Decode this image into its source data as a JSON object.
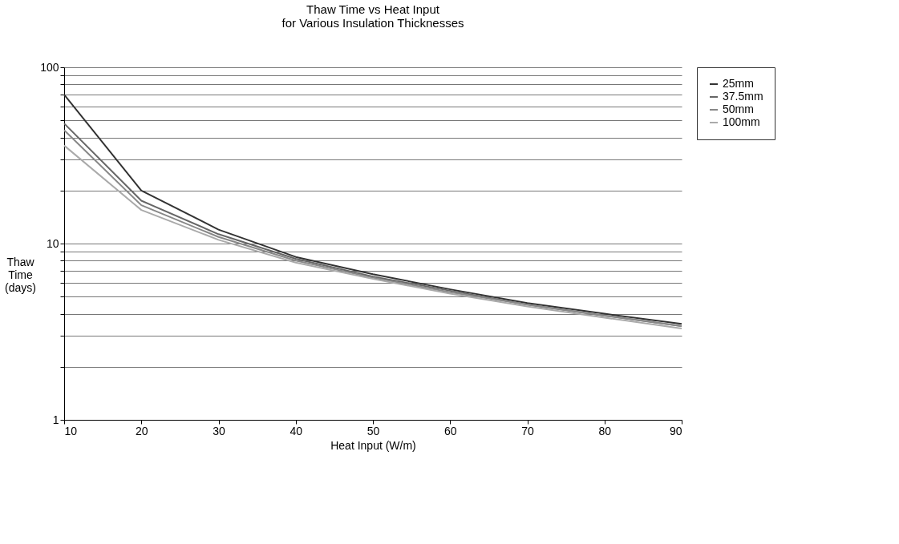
{
  "chart_data": {
    "type": "line",
    "title": [
      "Thaw Time vs Heat Input",
      "for Various Insulation Thicknesses"
    ],
    "xlabel": "Heat Input (W/m)",
    "ylabel": [
      "Thaw",
      "Time",
      "(days)"
    ],
    "x": [
      10,
      20,
      30,
      40,
      50,
      60,
      70,
      80,
      90
    ],
    "series": [
      {
        "name": "25mm",
        "color": "#333333",
        "values": [
          70,
          20,
          12,
          8.4,
          6.7,
          5.5,
          4.6,
          4.0,
          3.5
        ]
      },
      {
        "name": "37.5mm",
        "color": "#666666",
        "values": [
          48,
          17.5,
          11.3,
          8.2,
          6.5,
          5.4,
          4.5,
          3.9,
          3.4
        ]
      },
      {
        "name": "50mm",
        "color": "#888888",
        "values": [
          44,
          16.5,
          10.9,
          8.0,
          6.4,
          5.3,
          4.5,
          3.9,
          3.4
        ]
      },
      {
        "name": "100mm",
        "color": "#aaaaaa",
        "values": [
          36,
          15.5,
          10.5,
          7.8,
          6.3,
          5.2,
          4.4,
          3.8,
          3.3
        ]
      }
    ],
    "xlim": [
      10,
      90
    ],
    "xticks": [
      10,
      20,
      30,
      40,
      50,
      60,
      70,
      80,
      90
    ],
    "ylim": [
      1,
      100
    ],
    "yticks": [
      1,
      {
        "value": 2,
        "label": null
      },
      {
        "value": 3,
        "label": null
      },
      {
        "value": 4,
        "label": null
      },
      {
        "value": 5,
        "label": null
      },
      {
        "value": 6,
        "label": null
      },
      {
        "value": 7,
        "label": null
      },
      {
        "value": 8,
        "label": null
      },
      {
        "value": 9,
        "label": null
      },
      10,
      {
        "value": 20,
        "label": null
      },
      {
        "value": 30,
        "label": null
      },
      {
        "value": 40,
        "label": null
      },
      {
        "value": 50,
        "label": null
      },
      {
        "value": 60,
        "label": null
      },
      {
        "value": 70,
        "label": null
      },
      {
        "value": 80,
        "label": null
      },
      {
        "value": 90,
        "label": null
      },
      100
    ],
    "log": "y",
    "grid": "y",
    "legend": "right",
    "line_style": "solid",
    "marker": "none"
  }
}
